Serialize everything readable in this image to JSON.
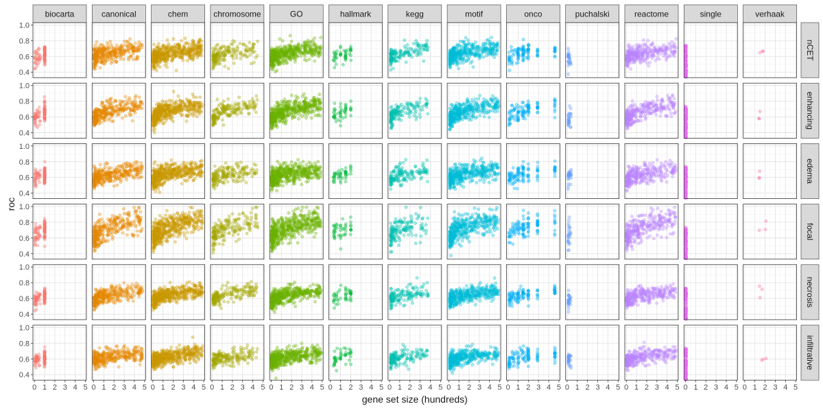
{
  "chart_data": {
    "type": "scatter",
    "facet_layout": "grid",
    "x_label": "gene set size (hundreds)",
    "y_label": "roc",
    "x_ticks": [
      "0",
      "1",
      "2",
      "3",
      "4",
      "5"
    ],
    "y_ticks": [
      "0.4",
      "0.6",
      "0.8",
      "1.0"
    ],
    "xlim": [
      -0.15,
      5.1
    ],
    "ylim": [
      0.33,
      1.03
    ],
    "column_facets": [
      {
        "name": "biocarta",
        "color": "#F8766D",
        "xrange": [
          0.05,
          0.6
        ],
        "x_extra": [
          1.0
        ],
        "n": 90
      },
      {
        "name": "canonical",
        "color": "#E58700",
        "xrange": [
          0.05,
          4.8
        ],
        "x_extra": [],
        "n": 320
      },
      {
        "name": "chem",
        "color": "#C99800",
        "xrange": [
          0.05,
          4.9
        ],
        "x_extra": [],
        "n": 480
      },
      {
        "name": "chromosome",
        "color": "#A3A500",
        "xrange": [
          0.1,
          4.5
        ],
        "x_extra": [],
        "n": 180
      },
      {
        "name": "GO",
        "color": "#6BB100",
        "xrange": [
          0.05,
          4.9
        ],
        "x_extra": [],
        "n": 480
      },
      {
        "name": "hallmark",
        "color": "#00BA38",
        "xrange": [
          0.3,
          2.0
        ],
        "x_extra": [
          0.4,
          1.0,
          1.5,
          2.0
        ],
        "n": 45
      },
      {
        "name": "kegg",
        "color": "#00C0AF",
        "xrange": [
          0.1,
          3.8
        ],
        "x_extra": [],
        "n": 150
      },
      {
        "name": "motif",
        "color": "#00BCD8",
        "xrange": [
          0.1,
          4.9
        ],
        "x_extra": [],
        "n": 400
      },
      {
        "name": "onco",
        "color": "#00B0F6",
        "xrange": [
          0.1,
          2.1
        ],
        "x_extra": [
          1.0,
          1.5,
          2.0,
          2.9,
          4.6
        ],
        "n": 110
      },
      {
        "name": "puchalski",
        "color": "#619CFF",
        "xrange": [
          0.1,
          0.4
        ],
        "x_extra": [],
        "n": 25
      },
      {
        "name": "reactome",
        "color": "#B983FF",
        "xrange": [
          0.05,
          4.9
        ],
        "x_extra": [],
        "n": 300
      },
      {
        "name": "single",
        "color": "#E76BF3",
        "xrange": [
          0.0,
          0.1
        ],
        "x_extra": [],
        "n": 120
      },
      {
        "name": "verhaak",
        "color": "#FF67A4",
        "xrange": [
          1.4,
          2.1
        ],
        "x_extra": [],
        "n": 3
      }
    ],
    "row_facets": [
      {
        "name": "nCET",
        "base": 0.56,
        "slope": 0.05,
        "spread": 0.06
      },
      {
        "name": "enhancing",
        "base": 0.56,
        "slope": 0.07,
        "spread": 0.06
      },
      {
        "name": "edema",
        "base": 0.56,
        "slope": 0.05,
        "spread": 0.06
      },
      {
        "name": "focal",
        "base": 0.58,
        "slope": 0.09,
        "spread": 0.08
      },
      {
        "name": "necrosis",
        "base": 0.56,
        "slope": 0.05,
        "spread": 0.05
      },
      {
        "name": "infiltrative",
        "base": 0.56,
        "slope": 0.04,
        "spread": 0.05
      }
    ]
  }
}
